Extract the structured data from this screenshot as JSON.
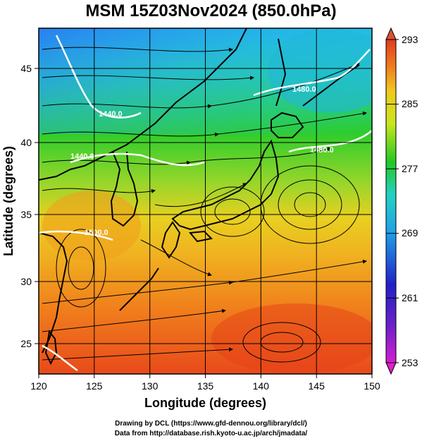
{
  "title": "MSM 15Z03Nov2024 (850.0hPa)",
  "x_axis": {
    "label": "Longitude (degrees)",
    "ticks": [
      "120",
      "125",
      "130",
      "135",
      "140",
      "145",
      "150"
    ]
  },
  "y_axis": {
    "label": "Latitude  (degrees)",
    "ticks": [
      "25",
      "30",
      "35",
      "40",
      "45"
    ]
  },
  "colorbar": {
    "ticks": [
      "293",
      "285",
      "277",
      "269",
      "261",
      "253"
    ],
    "range": [
      253,
      293
    ],
    "colors": [
      "#d21fd2",
      "#2020c8",
      "#1f9fe8",
      "#22d2c2",
      "#22c822",
      "#c8e61e",
      "#f0c81e",
      "#f07a1e",
      "#e03c1e"
    ]
  },
  "contours": [
    {
      "label": "1440.0"
    },
    {
      "label": "1440.0"
    },
    {
      "label": "1480.0"
    },
    {
      "label": "1480.0"
    },
    {
      "label": "1500.0"
    }
  ],
  "map": {
    "extent": {
      "lon": [
        120,
        150
      ],
      "lat": [
        22.5,
        47.5
      ]
    },
    "field": "temperature (K) with streamlines and geopotential height contours"
  },
  "credits": {
    "line1": "Drawing by DCL (https://www.gfd-dennou.org/library/dcl/)",
    "line2": "Data from http://database.rish.kyoto-u.ac.jp/arch/jmadata/"
  }
}
